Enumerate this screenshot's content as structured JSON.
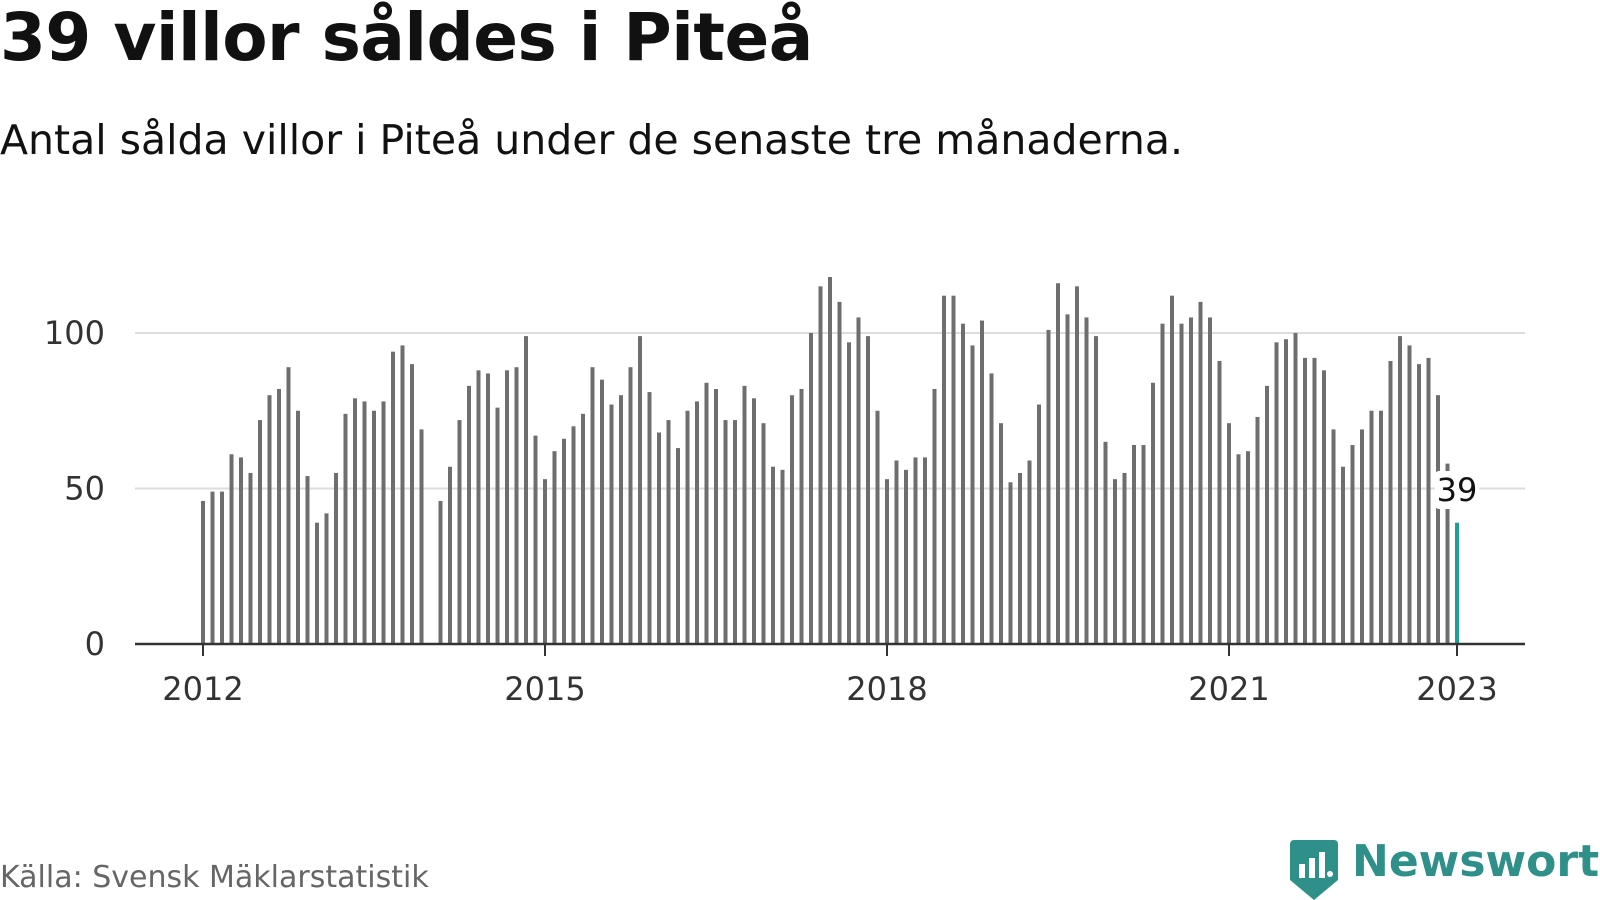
{
  "title": "39 villor såldes i Piteå",
  "subtitle": "Antal sålda villor i Piteå under de senaste tre månaderna.",
  "source": "Källa: Svensk Mäklarstatistik",
  "brand": {
    "name": "Newsworthy",
    "color": "#2e9089"
  },
  "colors": {
    "bar": "#6e6e6e",
    "highlight": "#1f9e93",
    "grid": "#dddddd",
    "axis": "#333333"
  },
  "chart_data": {
    "type": "bar",
    "title": "39 villor såldes i Piteå",
    "xlabel": "",
    "ylabel": "",
    "ylim": [
      0,
      120
    ],
    "yticks": [
      0,
      50,
      100
    ],
    "grid": true,
    "xticks": [
      {
        "label": "2012",
        "index": 0
      },
      {
        "label": "2015",
        "index": 36
      },
      {
        "label": "2018",
        "index": 72
      },
      {
        "label": "2021",
        "index": 108
      },
      {
        "label": "2023",
        "index": 132
      }
    ],
    "start": "2012-01",
    "values": [
      46,
      49,
      49,
      61,
      60,
      55,
      72,
      80,
      82,
      89,
      75,
      54,
      39,
      42,
      55,
      74,
      79,
      78,
      75,
      78,
      94,
      96,
      90,
      69,
      null,
      46,
      57,
      72,
      83,
      88,
      87,
      76,
      88,
      89,
      99,
      67,
      53,
      62,
      66,
      70,
      74,
      89,
      85,
      77,
      80,
      89,
      99,
      81,
      68,
      72,
      63,
      75,
      78,
      84,
      82,
      72,
      72,
      83,
      79,
      71,
      57,
      56,
      80,
      82,
      100,
      115,
      118,
      110,
      97,
      105,
      99,
      75,
      53,
      59,
      56,
      60,
      60,
      82,
      112,
      112,
      103,
      96,
      104,
      87,
      71,
      52,
      55,
      59,
      77,
      101,
      116,
      106,
      115,
      105,
      99,
      65,
      53,
      55,
      64,
      64,
      84,
      103,
      112,
      103,
      105,
      110,
      105,
      91,
      71,
      61,
      62,
      73,
      83,
      97,
      98,
      100,
      92,
      92,
      88,
      69,
      57,
      64,
      69,
      75,
      75,
      91,
      99,
      96,
      90,
      92,
      80,
      58,
      39
    ],
    "highlight_index": 132,
    "annotation": {
      "index": 132,
      "label": "39"
    }
  }
}
